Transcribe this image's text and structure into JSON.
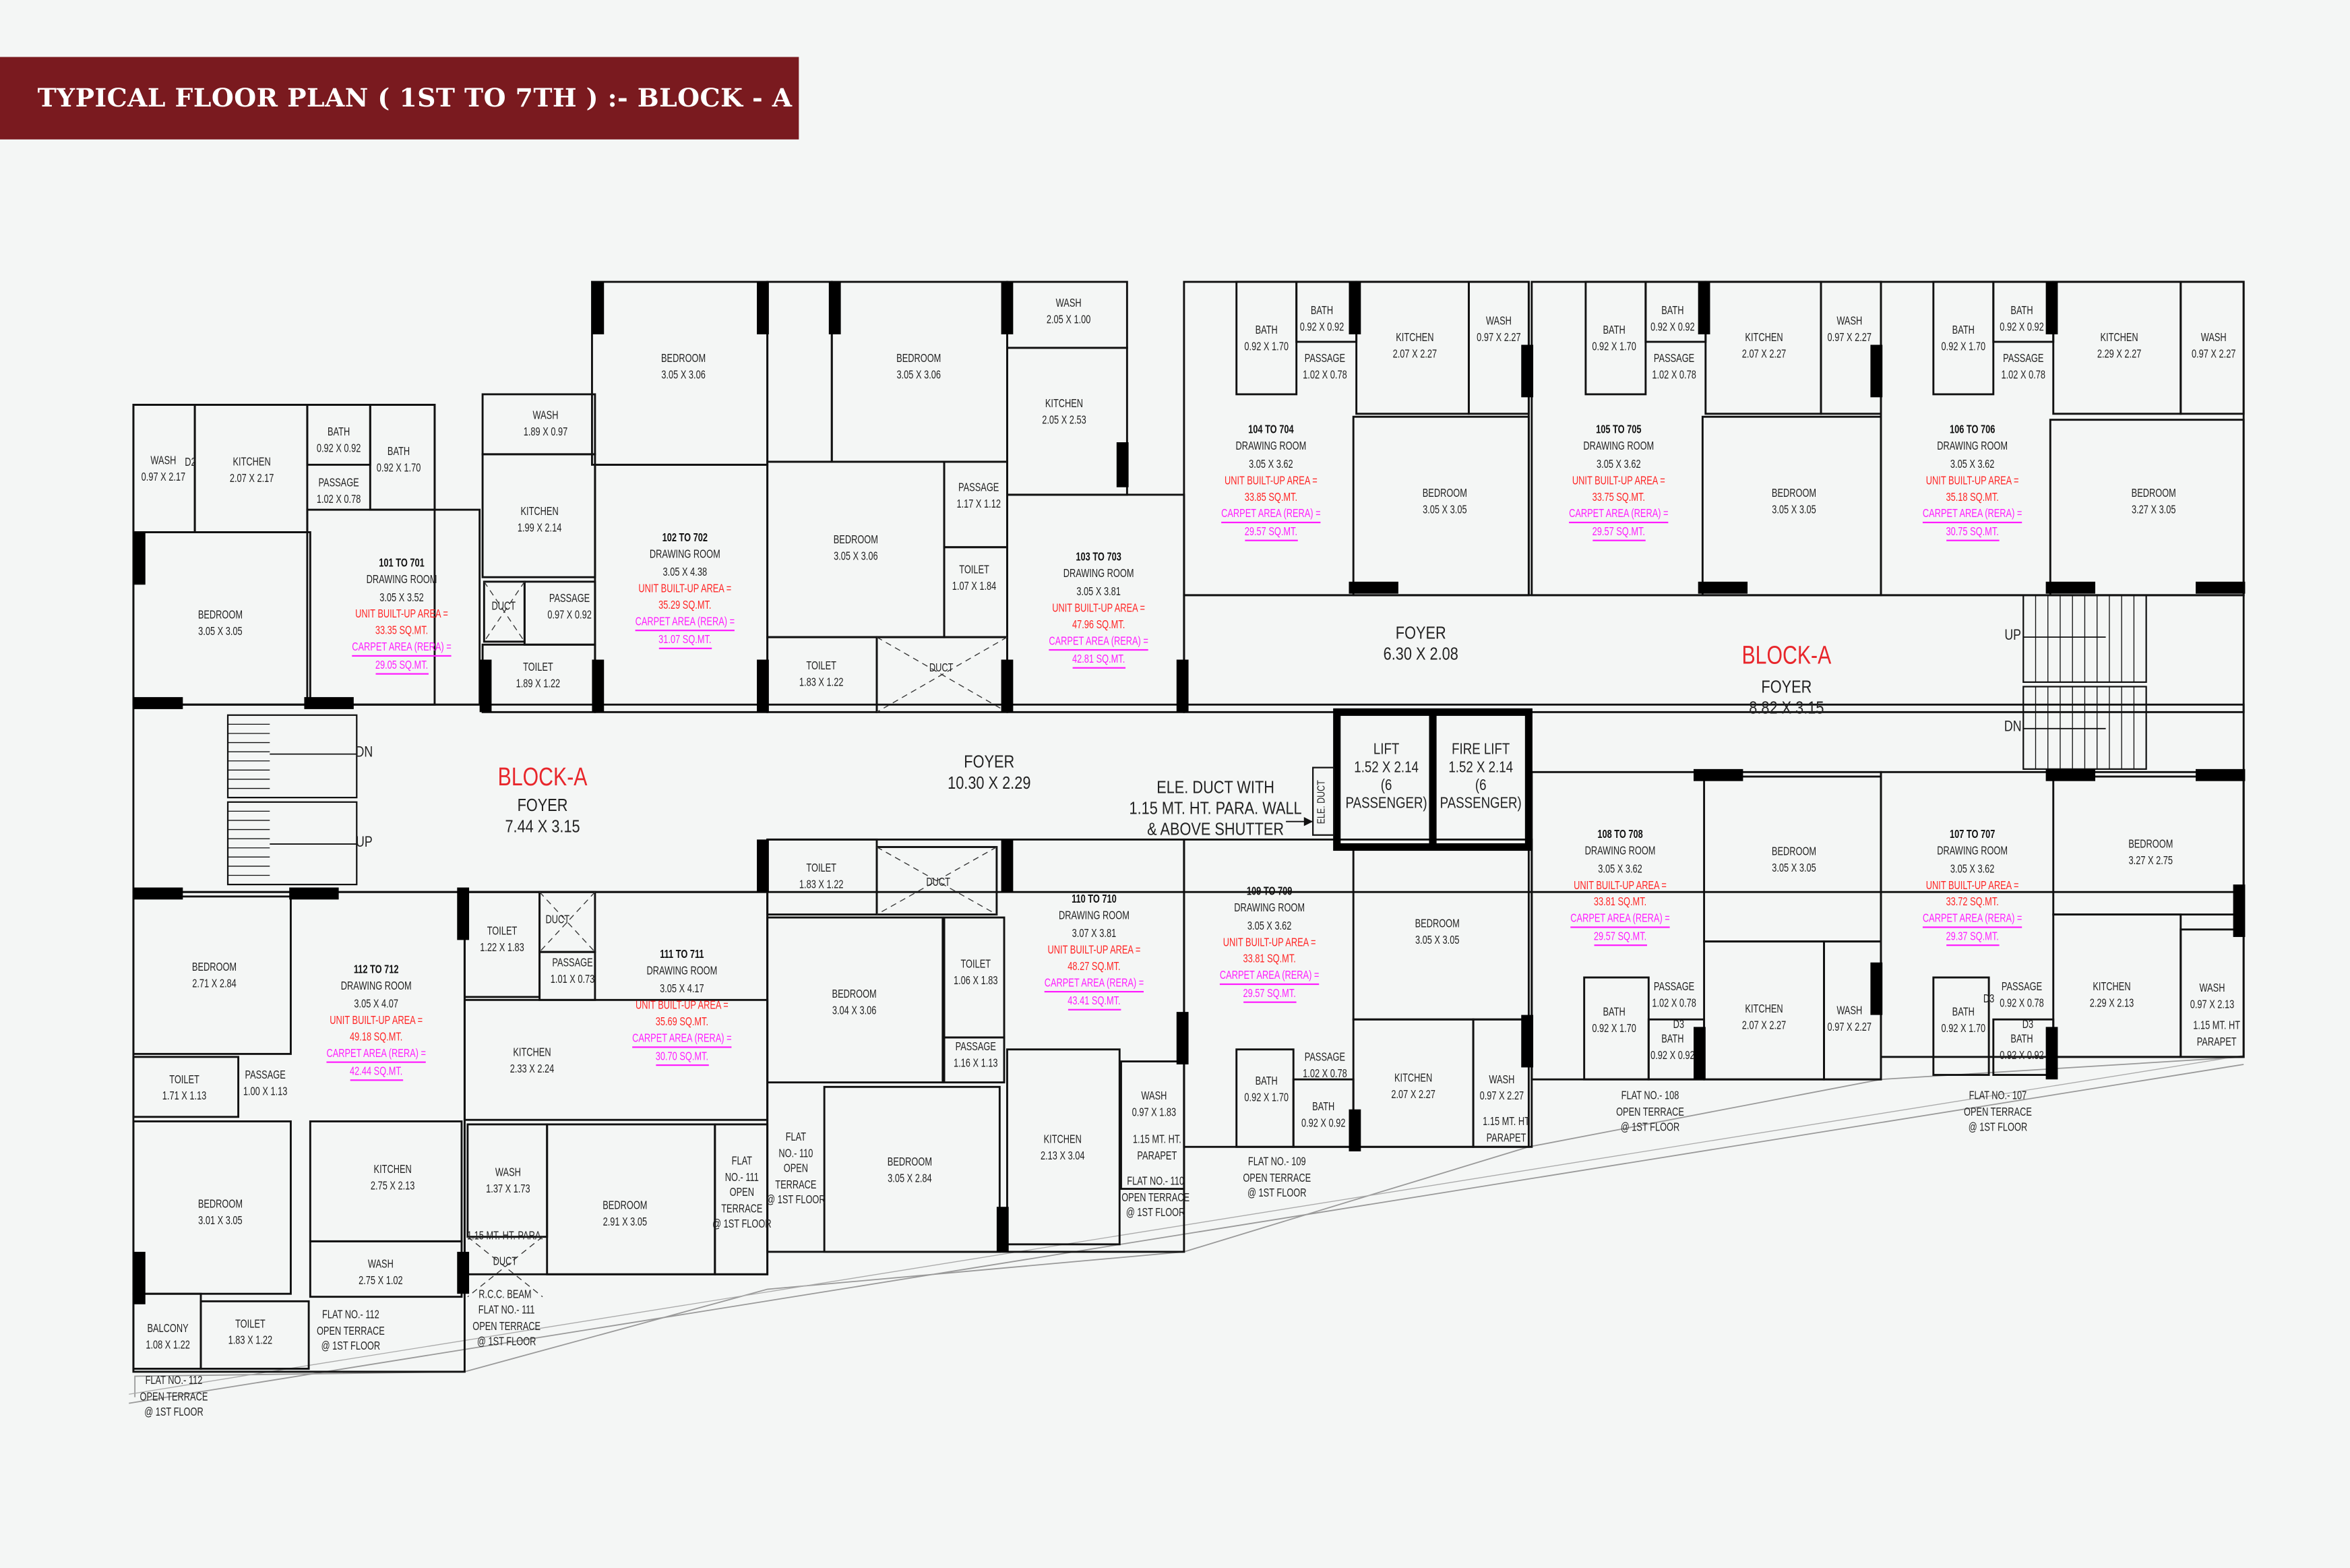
{
  "title": "TYPICAL FLOOR PLAN ( 1ST TO 7TH ) :- BLOCK - A",
  "colors": {
    "title_bar": "#7a1a1f",
    "built_up_text": "#ff2424",
    "carpet_text": "#ff1cff",
    "block_label": "#e8262b",
    "walls": "#111111",
    "background": "#f4f6f5"
  },
  "block_labels": [
    "BLOCK-A",
    "BLOCK-A"
  ],
  "foyers": [
    {
      "name": "FOYER",
      "dims": "7.44 X 3.15"
    },
    {
      "name": "FOYER",
      "dims": "10.30 X 2.29"
    },
    {
      "name": "FOYER",
      "dims": "6.30 X 2.08"
    },
    {
      "name": "FOYER",
      "dims": "8.82 X 3.15"
    }
  ],
  "stairs": [
    "DN",
    "UP",
    "UP",
    "DN"
  ],
  "lifts": [
    {
      "lines": [
        "LIFT",
        "1.52 X 2.14",
        "(6",
        "PASSENGER)"
      ]
    },
    {
      "lines": [
        "FIRE LIFT",
        "1.52 X 2.14",
        "(6",
        "PASSENGER)"
      ]
    }
  ],
  "ele_duct_label": "ELE. DUCT",
  "units": [
    {
      "code": "101 TO 701",
      "drawing_room": "DRAWING ROOM",
      "drawing_dims": "3.05 X 3.52",
      "built_up_label": "UNIT BUILT-UP AREA =",
      "built_up": "33.35 SQ.MT.",
      "carpet_label": "CARPET AREA (RERA) =",
      "carpet": "29.05 SQ.MT.",
      "rooms": [
        {
          "name": "WASH",
          "dims": "0.97 X 2.17"
        },
        {
          "name": "D2"
        },
        {
          "name": "KITCHEN",
          "dims": "2.07 X 2.17"
        },
        {
          "name": "BATH",
          "dims": "0.92 X 0.92"
        },
        {
          "name": "BATH",
          "dims": "0.92 X 1.70"
        },
        {
          "name": "PASSAGE",
          "dims": "1.02 X 0.78"
        },
        {
          "name": "BEDROOM",
          "dims": "3.05 X 3.05"
        }
      ]
    },
    {
      "code": "102 TO 702",
      "drawing_room": "DRAWING ROOM",
      "drawing_dims": "3.05 X 4.38",
      "built_up_label": "UNIT BUILT-UP AREA =",
      "built_up": "35.29 SQ.MT.",
      "carpet_label": "CARPET AREA (RERA) =",
      "carpet": "31.07 SQ.MT.",
      "rooms": [
        {
          "name": "WASH",
          "dims": "1.89 X 0.97"
        },
        {
          "name": "KITCHEN",
          "dims": "1.99 X 2.14"
        },
        {
          "name": "DUCT"
        },
        {
          "name": "PASSAGE",
          "dims": "0.97 X 0.92"
        },
        {
          "name": "TOILET",
          "dims": "1.89 X 1.22"
        },
        {
          "name": "BEDROOM",
          "dims": "3.05 X 3.06"
        }
      ]
    },
    {
      "code": "103 TO 703",
      "drawing_room": "DRAWING ROOM",
      "drawing_dims": "3.05 X 3.81",
      "built_up_label": "UNIT BUILT-UP AREA =",
      "built_up": "47.96 SQ.MT.",
      "carpet_label": "CARPET AREA (RERA) =",
      "carpet": "42.81 SQ.MT.",
      "rooms": [
        {
          "name": "BEDROOM",
          "dims": "3.05 X 3.06"
        },
        {
          "name": "WASH",
          "dims": "2.05 X 1.00"
        },
        {
          "name": "KITCHEN",
          "dims": "2.05 X 2.53"
        },
        {
          "name": "PASSAGE",
          "dims": "1.17 X 1.12"
        },
        {
          "name": "BEDROOM",
          "dims": "3.05 X 3.06"
        },
        {
          "name": "TOILET",
          "dims": "1.07 X 1.84"
        },
        {
          "name": "TOILET",
          "dims": "1.83 X 1.22"
        },
        {
          "name": "DUCT"
        }
      ]
    },
    {
      "code": "104 TO 704",
      "drawing_room": "DRAWING ROOM",
      "drawing_dims": "3.05 X 3.62",
      "built_up_label": "UNIT BUILT-UP AREA =",
      "built_up": "33.85 SQ.MT.",
      "carpet_label": "CARPET AREA (RERA) =",
      "carpet": "29.57 SQ.MT.",
      "rooms": [
        {
          "name": "BATH",
          "dims": "0.92 X 1.70"
        },
        {
          "name": "BATH",
          "dims": "0.92 X 0.92"
        },
        {
          "name": "PASSAGE",
          "dims": "1.02 X 0.78"
        },
        {
          "name": "KITCHEN",
          "dims": "2.07 X 2.27"
        },
        {
          "name": "WASH",
          "dims": "0.97 X 2.27"
        },
        {
          "name": "BEDROOM",
          "dims": "3.05 X 3.05"
        }
      ]
    },
    {
      "code": "105 TO 705",
      "drawing_room": "DRAWING ROOM",
      "drawing_dims": "3.05 X 3.62",
      "built_up_label": "UNIT BUILT-UP AREA =",
      "built_up": "33.75 SQ.MT.",
      "carpet_label": "CARPET AREA (RERA) =",
      "carpet": "29.57 SQ.MT.",
      "rooms": [
        {
          "name": "BATH",
          "dims": "0.92 X 1.70"
        },
        {
          "name": "BATH",
          "dims": "0.92 X 0.92"
        },
        {
          "name": "PASSAGE",
          "dims": "1.02 X 0.78"
        },
        {
          "name": "KITCHEN",
          "dims": "2.07 X 2.27"
        },
        {
          "name": "WASH",
          "dims": "0.97 X 2.27"
        },
        {
          "name": "BEDROOM",
          "dims": "3.05 X 3.05"
        }
      ]
    },
    {
      "code": "106 TO 706",
      "drawing_room": "DRAWING ROOM",
      "drawing_dims": "3.05 X 3.62",
      "built_up_label": "UNIT BUILT-UP AREA =",
      "built_up": "35.18 SQ.MT.",
      "carpet_label": "CARPET AREA (RERA) =",
      "carpet": "30.75 SQ.MT.",
      "rooms": [
        {
          "name": "BATH",
          "dims": "0.92 X 1.70"
        },
        {
          "name": "BATH",
          "dims": "0.92 X 0.92"
        },
        {
          "name": "PASSAGE",
          "dims": "1.02 X 0.78"
        },
        {
          "name": "KITCHEN",
          "dims": "2.29 X 2.27"
        },
        {
          "name": "WASH",
          "dims": "0.97 X 2.27"
        },
        {
          "name": "BEDROOM",
          "dims": "3.27 X 3.05"
        }
      ]
    },
    {
      "code": "107 TO 707",
      "drawing_room": "DRAWING ROOM",
      "drawing_dims": "3.05 X 3.62",
      "built_up_label": "UNIT BUILT-UP AREA =",
      "built_up": "33.72 SQ.MT.",
      "carpet_label": "CARPET AREA (RERA) =",
      "carpet": "29.37 SQ.MT.",
      "rooms": [
        {
          "name": "BEDROOM",
          "dims": "3.27 X 2.75"
        },
        {
          "name": "BATH",
          "dims": "0.92 X 1.70"
        },
        {
          "name": "D3"
        },
        {
          "name": "PASSAGE",
          "dims": "0.92 X 0.78"
        },
        {
          "name": "D3"
        },
        {
          "name": "BATH",
          "dims": "0.92 X 0.92"
        },
        {
          "name": "KITCHEN",
          "dims": "2.29 X 2.13"
        },
        {
          "name": "WASH",
          "dims": "0.97 X 2.13"
        }
      ]
    },
    {
      "code": "108 TO 708",
      "drawing_room": "DRAWING ROOM",
      "drawing_dims": "3.05 X 3.62",
      "built_up_label": "UNIT BUILT-UP AREA =",
      "built_up": "33.81 SQ.MT.",
      "carpet_label": "CARPET AREA (RERA) =",
      "carpet": "29.57 SQ.MT.",
      "rooms": [
        {
          "name": "BEDROOM",
          "dims": "3.05 X 3.05"
        },
        {
          "name": "BATH",
          "dims": "0.92 X 1.70"
        },
        {
          "name": "PASSAGE",
          "dims": "1.02 X 0.78"
        },
        {
          "name": "D3"
        },
        {
          "name": "BATH",
          "dims": "0.92 X 0.92"
        },
        {
          "name": "KITCHEN",
          "dims": "2.07 X 2.27"
        },
        {
          "name": "WASH",
          "dims": "0.97 X 2.27"
        }
      ]
    },
    {
      "code": "109 TO 709",
      "drawing_room": "DRAWING ROOM",
      "drawing_dims": "3.05 X 3.62",
      "built_up_label": "UNIT BUILT-UP AREA =",
      "built_up": "33.81 SQ.MT.",
      "carpet_label": "CARPET AREA (RERA) =",
      "carpet": "29.57 SQ.MT.",
      "rooms": [
        {
          "name": "BEDROOM",
          "dims": "3.05 X 3.05"
        },
        {
          "name": "BATH",
          "dims": "0.92 X 1.70"
        },
        {
          "name": "PASSAGE",
          "dims": "1.02 X 0.78"
        },
        {
          "name": "BATH",
          "dims": "0.92 X 0.92"
        },
        {
          "name": "KITCHEN",
          "dims": "2.07 X 2.27"
        },
        {
          "name": "WASH",
          "dims": "0.97 X 2.27"
        }
      ]
    },
    {
      "code": "110 TO 710",
      "drawing_room": "DRAWING ROOM",
      "drawing_dims": "3.07 X 3.81",
      "built_up_label": "UNIT BUILT-UP AREA =",
      "built_up": "48.27 SQ.MT.",
      "carpet_label": "CARPET AREA (RERA) =",
      "carpet": "43.41 SQ.MT.",
      "rooms": [
        {
          "name": "TOILET",
          "dims": "1.83 X 1.22"
        },
        {
          "name": "DUCT"
        },
        {
          "name": "BEDROOM",
          "dims": "3.04 X 3.06"
        },
        {
          "name": "TOILET",
          "dims": "1.06 X 1.83"
        },
        {
          "name": "PASSAGE",
          "dims": "1.16 X 1.13"
        },
        {
          "name": "KITCHEN",
          "dims": "2.13 X 3.04"
        },
        {
          "name": "WASH",
          "dims": "0.97 X 1.83"
        },
        {
          "name": "BEDROOM",
          "dims": "3.05 X 2.84"
        }
      ]
    },
    {
      "code": "111 TO 711",
      "drawing_room": "DRAWING ROOM",
      "drawing_dims": "3.05 X 4.17",
      "built_up_label": "UNIT BUILT-UP AREA =",
      "built_up": "35.69 SQ.MT.",
      "carpet_label": "CARPET AREA (RERA) =",
      "carpet": "30.70 SQ.MT.",
      "rooms": [
        {
          "name": "TOILET",
          "dims": "1.22 X 1.83"
        },
        {
          "name": "DUCT"
        },
        {
          "name": "PASSAGE",
          "dims": "1.01 X 0.73"
        },
        {
          "name": "KITCHEN",
          "dims": "2.33 X 2.24"
        },
        {
          "name": "WASH",
          "dims": "1.37 X 1.73"
        },
        {
          "name": "BEDROOM",
          "dims": "2.91 X 3.05"
        }
      ]
    },
    {
      "code": "112 TO 712",
      "drawing_room": "DRAWING ROOM",
      "drawing_dims": "3.05 X 4.07",
      "built_up_label": "UNIT BUILT-UP AREA =",
      "built_up": "49.18 SQ.MT.",
      "carpet_label": "CARPET AREA (RERA) =",
      "carpet": "42.44 SQ.MT.",
      "rooms": [
        {
          "name": "BEDROOM",
          "dims": "2.71 X 2.84"
        },
        {
          "name": "TOILET",
          "dims": "1.71 X 1.13"
        },
        {
          "name": "PASSAGE",
          "dims": "1.00 X 1.13"
        },
        {
          "name": "BEDROOM",
          "dims": "3.01 X 3.05"
        },
        {
          "name": "KITCHEN",
          "dims": "2.75 X 2.13"
        },
        {
          "name": "WASH",
          "dims": "2.75 X 1.02"
        },
        {
          "name": "BALCONY",
          "dims": "1.08 X 1.22"
        },
        {
          "name": "TOILET",
          "dims": "1.83 X 1.22"
        }
      ]
    }
  ],
  "notes": [
    {
      "lines": [
        "FLAT NO.- 108",
        "OPEN TERRACE",
        "@ 1ST FLOOR"
      ]
    },
    {
      "lines": [
        "FLAT NO.- 107",
        "OPEN TERRACE",
        "@ 1ST FLOOR"
      ]
    },
    {
      "lines": [
        "FLAT NO.- 109",
        "OPEN TERRACE",
        "@ 1ST FLOOR"
      ]
    },
    {
      "lines": [
        "FLAT NO.- 110",
        "OPEN TERRACE",
        "@ 1ST FLOOR"
      ]
    },
    {
      "lines": [
        "FLAT",
        "NO.- 110",
        "OPEN",
        "TERRACE",
        "@ 1ST FLOOR"
      ]
    },
    {
      "lines": [
        "FLAT",
        "NO.- 111",
        "OPEN",
        "TERRACE",
        "@ 1ST FLOOR"
      ]
    },
    {
      "lines": [
        "FLAT NO.- 111",
        "OPEN TERRACE",
        "@ 1ST FLOOR"
      ]
    },
    {
      "lines": [
        "FLAT NO.- 112",
        "OPEN TERRACE",
        "@ 1ST FLOOR"
      ]
    },
    {
      "lines": [
        "FLAT NO.- 112",
        "OPEN TERRACE",
        "@ 1ST FLOOR"
      ]
    },
    {
      "lines": [
        "1.15 MT. HT",
        "PARAPET"
      ]
    },
    {
      "lines": [
        "1.15 MT. HT",
        "PARAPET"
      ]
    },
    {
      "lines": [
        "1.15 MT. HT.",
        "PARAPET"
      ]
    },
    {
      "lines": [
        "1.15 MT. HT. PARA."
      ]
    },
    {
      "lines": [
        "DUCT"
      ]
    },
    {
      "lines": [
        "R.C.C. BEAM"
      ]
    },
    {
      "lines": [
        "ELE. DUCT WITH",
        "1.15 MT. HT. PARA. WALL",
        "& ABOVE SHUTTER"
      ]
    }
  ]
}
